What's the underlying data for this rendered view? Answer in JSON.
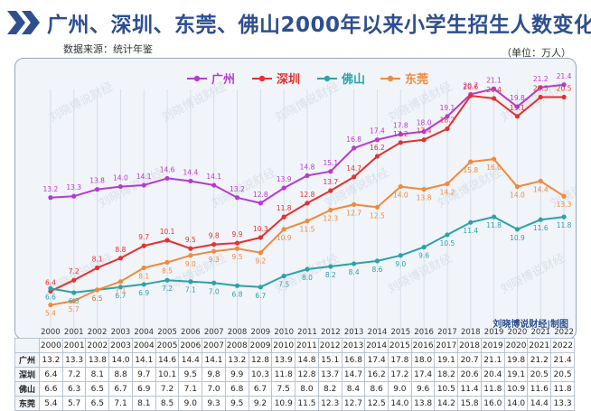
{
  "header": {
    "title": "广州、深圳、东莞、佛山2000年以来小学生招生人数变化",
    "source": "数据来源：统计年鉴",
    "unit": "（单位：万人）",
    "credit": "刘晓博说财经|制图",
    "watermark": "刘晓博说财经"
  },
  "chart_data": {
    "type": "line",
    "x": [
      "2000",
      "2001",
      "2002",
      "2003",
      "2004",
      "2005",
      "2006",
      "2007",
      "2008",
      "2009",
      "2010",
      "2011",
      "2012",
      "2013",
      "2014",
      "2015",
      "2016",
      "2017",
      "2018",
      "2019",
      "2020",
      "2021",
      "2022"
    ],
    "series": [
      {
        "name": "广州",
        "color": "#b53bd0",
        "values": [
          13.2,
          13.3,
          13.8,
          14.0,
          14.1,
          14.6,
          14.4,
          14.1,
          13.2,
          12.8,
          13.9,
          14.8,
          15.1,
          16.8,
          17.4,
          17.8,
          18.0,
          19.1,
          20.7,
          21.1,
          19.8,
          21.2,
          21.4
        ]
      },
      {
        "name": "深圳",
        "color": "#e53030",
        "values": [
          6.4,
          7.2,
          8.1,
          8.8,
          9.7,
          10.1,
          9.5,
          9.8,
          9.9,
          10.3,
          11.8,
          12.8,
          13.7,
          14.7,
          16.2,
          17.2,
          17.4,
          18.2,
          20.6,
          20.4,
          19.1,
          20.5,
          20.5
        ]
      },
      {
        "name": "佛山",
        "color": "#2aa3a8",
        "values": [
          6.6,
          6.3,
          6.5,
          6.7,
          6.9,
          7.2,
          7.1,
          7.0,
          6.8,
          6.7,
          7.5,
          8.0,
          8.2,
          8.4,
          8.6,
          9.0,
          9.6,
          10.5,
          11.4,
          11.8,
          10.9,
          11.6,
          11.8
        ]
      },
      {
        "name": "东莞",
        "color": "#ef8a3c",
        "values": [
          5.4,
          5.7,
          6.5,
          7.1,
          8.1,
          8.5,
          9.0,
          9.3,
          9.5,
          9.2,
          10.9,
          11.5,
          12.3,
          12.7,
          12.5,
          14.0,
          13.8,
          14.2,
          15.8,
          16.0,
          14.0,
          14.4,
          13.3
        ]
      }
    ],
    "legend_position": "top-center",
    "grid": true,
    "ylim": [
      4,
      22.5
    ]
  }
}
